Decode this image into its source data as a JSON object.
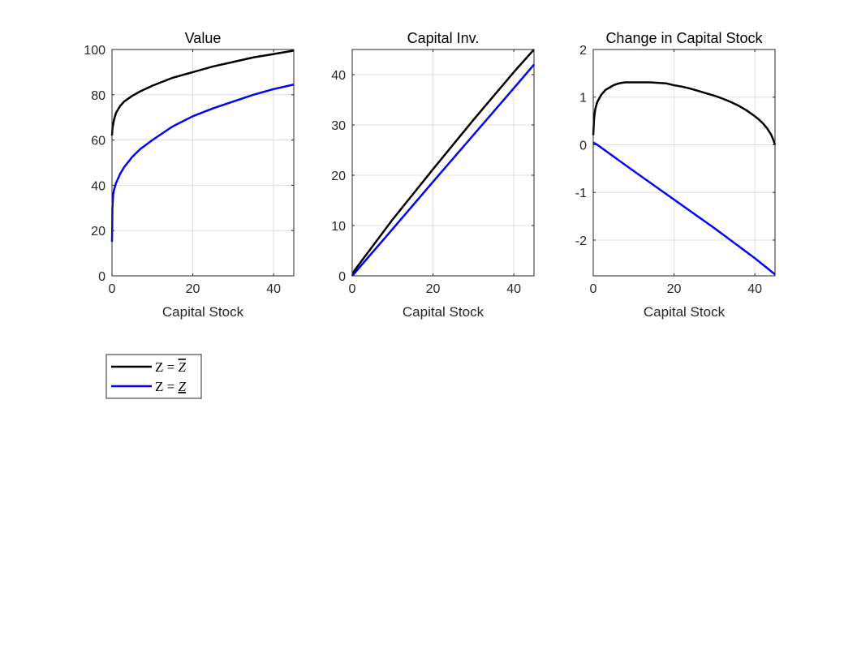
{
  "colors": {
    "series_high": "#000000",
    "series_low": "#0000ff",
    "axis": "#262626",
    "grid": "#dfdfdf",
    "background": "#ffffff"
  },
  "legend": {
    "placement": "below-left",
    "entries": [
      {
        "label_prefix": "Z = ",
        "label_symbol": "Z",
        "decoration": "overline",
        "series_ref": 0
      },
      {
        "label_prefix": "Z = ",
        "label_symbol": "Z",
        "decoration": "underline",
        "series_ref": 1
      }
    ]
  },
  "chart_data": [
    {
      "type": "line",
      "title": "Value",
      "xlabel": "Capital Stock",
      "ylabel": "",
      "xlim": [
        0,
        45
      ],
      "ylim": [
        0,
        100
      ],
      "xticks": [
        0,
        20,
        40
      ],
      "yticks": [
        0,
        20,
        40,
        60,
        80,
        100
      ],
      "grid": true,
      "series": [
        {
          "color": "#000000",
          "x": [
            0,
            0.1,
            0.5,
            1,
            2,
            3,
            5,
            7,
            10,
            15,
            20,
            25,
            30,
            35,
            40,
            45
          ],
          "y": [
            62,
            65,
            69,
            72,
            75,
            77,
            79.5,
            81.5,
            84,
            87.5,
            90,
            92.5,
            94.5,
            96.5,
            98,
            99.5
          ]
        },
        {
          "color": "#0000ff",
          "x": [
            0,
            0.05,
            0.1,
            0.3,
            0.5,
            1,
            2,
            3,
            5,
            7,
            10,
            15,
            20,
            25,
            30,
            35,
            40,
            45
          ],
          "y": [
            15,
            20,
            30,
            36,
            38,
            41,
            45,
            48,
            52.5,
            56,
            60,
            66,
            70.5,
            74,
            77,
            80,
            82.5,
            84.5
          ]
        }
      ]
    },
    {
      "type": "line",
      "title": "Capital Inv.",
      "xlabel": "Capital Stock",
      "ylabel": "",
      "xlim": [
        0,
        45
      ],
      "ylim": [
        0,
        45
      ],
      "xticks": [
        0,
        20,
        40
      ],
      "yticks": [
        0,
        10,
        20,
        30,
        40
      ],
      "grid": true,
      "series": [
        {
          "color": "#000000",
          "x": [
            0,
            0.5,
            10,
            20,
            30,
            40,
            45
          ],
          "y": [
            0,
            1.0,
            11.2,
            21.2,
            31.0,
            40.5,
            45
          ]
        },
        {
          "color": "#0000ff",
          "x": [
            0,
            10,
            20,
            30,
            40,
            45
          ],
          "y": [
            0,
            9.3,
            18.7,
            28.0,
            37.3,
            42
          ]
        }
      ]
    },
    {
      "type": "line",
      "title": "Change in Capital Stock",
      "xlabel": "Capital Stock",
      "ylabel": "",
      "xlim": [
        0,
        45
      ],
      "ylim": [
        -2.75,
        2
      ],
      "xticks": [
        0,
        20,
        40
      ],
      "yticks": [
        -2,
        -1,
        0,
        1,
        2
      ],
      "grid": true,
      "series": [
        {
          "color": "#000000",
          "x": [
            0,
            0.2,
            0.5,
            1,
            2,
            3,
            4,
            5,
            6,
            7,
            8,
            10,
            12,
            14,
            16,
            18,
            20,
            22,
            24,
            26,
            28,
            30,
            32,
            34,
            36,
            38,
            40,
            41,
            42,
            43,
            44,
            44.5,
            45
          ],
          "y": [
            0.2,
            0.55,
            0.75,
            0.9,
            1.05,
            1.15,
            1.2,
            1.25,
            1.28,
            1.3,
            1.31,
            1.31,
            1.31,
            1.31,
            1.3,
            1.29,
            1.25,
            1.22,
            1.18,
            1.13,
            1.08,
            1.03,
            0.97,
            0.9,
            0.82,
            0.72,
            0.6,
            0.53,
            0.45,
            0.35,
            0.22,
            0.12,
            0.0
          ]
        },
        {
          "color": "#0000ff",
          "x": [
            0,
            1,
            10,
            20,
            30,
            40,
            45
          ],
          "y": [
            0.05,
            0.0,
            -0.55,
            -1.15,
            -1.75,
            -2.38,
            -2.72
          ]
        }
      ]
    }
  ]
}
